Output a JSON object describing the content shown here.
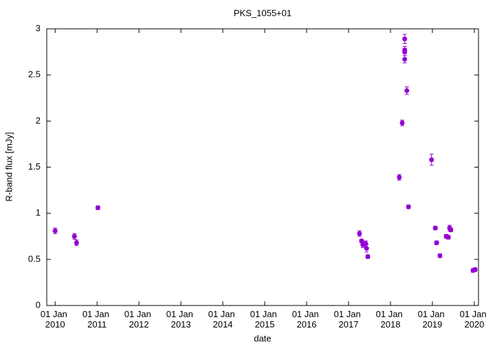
{
  "chart_data": {
    "type": "scatter",
    "title": "PKS_1055+01",
    "x_label": "date",
    "y_label": "R-band flux [mJy]",
    "x": [
      2010.0,
      2010.46,
      2010.51,
      2011.02,
      2017.26,
      2017.31,
      2017.34,
      2017.41,
      2017.43,
      2017.46,
      2018.21,
      2018.28,
      2018.34,
      2018.34,
      2018.34,
      2018.34,
      2018.39,
      2018.43,
      2018.98,
      2019.07,
      2019.1,
      2019.18,
      2019.33,
      2019.38,
      2019.41,
      2019.44,
      2019.97,
      2020.02
    ],
    "values": [
      0.81,
      0.75,
      0.68,
      1.06,
      0.78,
      0.7,
      0.66,
      0.67,
      0.62,
      0.53,
      1.39,
      1.98,
      2.67,
      2.75,
      2.77,
      2.89,
      2.33,
      1.07,
      1.58,
      0.84,
      0.68,
      0.54,
      0.75,
      0.74,
      0.84,
      0.82,
      0.38,
      0.39
    ],
    "errors": [
      0.03,
      0.03,
      0.03,
      0.02,
      0.03,
      0.02,
      0.03,
      0.03,
      0.04,
      0.02,
      0.03,
      0.03,
      0.04,
      0.04,
      0.04,
      0.05,
      0.04,
      0.02,
      0.06,
      0.02,
      0.02,
      0.02,
      0.02,
      0.02,
      0.03,
      0.02,
      0.02,
      0.02
    ],
    "color": "#9400d3",
    "xlim": [
      2009.8,
      2020.1
    ],
    "xticks": [
      {
        "value": 2010,
        "label": "01 Jan 2010"
      },
      {
        "value": 2011,
        "label": "01 Jan 2011"
      },
      {
        "value": 2012,
        "label": "01 Jan 2012"
      },
      {
        "value": 2013,
        "label": "01 Jan 2013"
      },
      {
        "value": 2014,
        "label": "01 Jan 2014"
      },
      {
        "value": 2015,
        "label": "01 Jan 2015"
      },
      {
        "value": 2016,
        "label": "01 Jan 2016"
      },
      {
        "value": 2017,
        "label": "01 Jan 2017"
      },
      {
        "value": 2018,
        "label": "01 Jan 2018"
      },
      {
        "value": 2019,
        "label": "01 Jan 2019"
      },
      {
        "value": 2020,
        "label": "01 Jan 2020"
      }
    ],
    "ylim": [
      0,
      3
    ],
    "yticks": [
      0,
      0.5,
      1,
      1.5,
      2,
      2.5,
      3
    ],
    "grid": false
  }
}
